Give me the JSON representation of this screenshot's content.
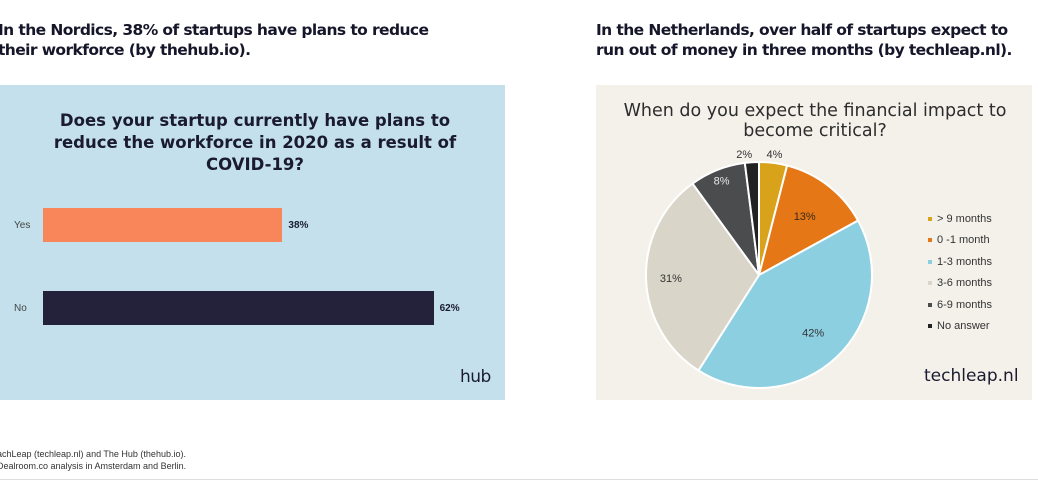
{
  "headings": {
    "left": "In the Nordics, 38% of startups have plans to reduce their workforce (by thehub.io).",
    "right": "In the Netherlands, over half of startups expect to run out of money in three months (by techleap.nl)."
  },
  "chart_data": [
    {
      "type": "bar",
      "orientation": "horizontal",
      "title": "Does your startup currently have plans to reduce the workforce in 2020 as a result of COVID-19?",
      "categories": [
        "Yes",
        "No"
      ],
      "values": [
        38,
        62
      ],
      "value_labels": [
        "38%",
        "62%"
      ],
      "colors": [
        "#f9865a",
        "#23223a"
      ],
      "background": "#c3e0ec",
      "xlim": [
        0,
        100
      ],
      "logo": "hub"
    },
    {
      "type": "pie",
      "title": "When do you expect the financial impact to become critical?",
      "slices": [
        {
          "label": "> 9 months",
          "value": 4,
          "value_label": "4%",
          "color": "#d9a21b"
        },
        {
          "label": "0 -1 month",
          "value": 13,
          "value_label": "13%",
          "color": "#e67717"
        },
        {
          "label": "1-3 months",
          "value": 42,
          "value_label": "42%",
          "color": "#8ccfe1"
        },
        {
          "label": "3-6 months",
          "value": 31,
          "value_label": "31%",
          "color": "#d9d5c9"
        },
        {
          "label": "6-9 months",
          "value": 8,
          "value_label": "8%",
          "color": "#4b4c4e"
        },
        {
          "label": "No answer",
          "value": 2,
          "value_label": "2%",
          "color": "#222222"
        }
      ],
      "legend_position": "right",
      "background": "#f3f1ea",
      "logo": "techleap.nl"
    }
  ],
  "sources": {
    "line1": "achLeap (techleap.nl) and The Hub (thehub.io).",
    "line2": "Dealroom.co analysis in Amsterdam and Berlin."
  }
}
